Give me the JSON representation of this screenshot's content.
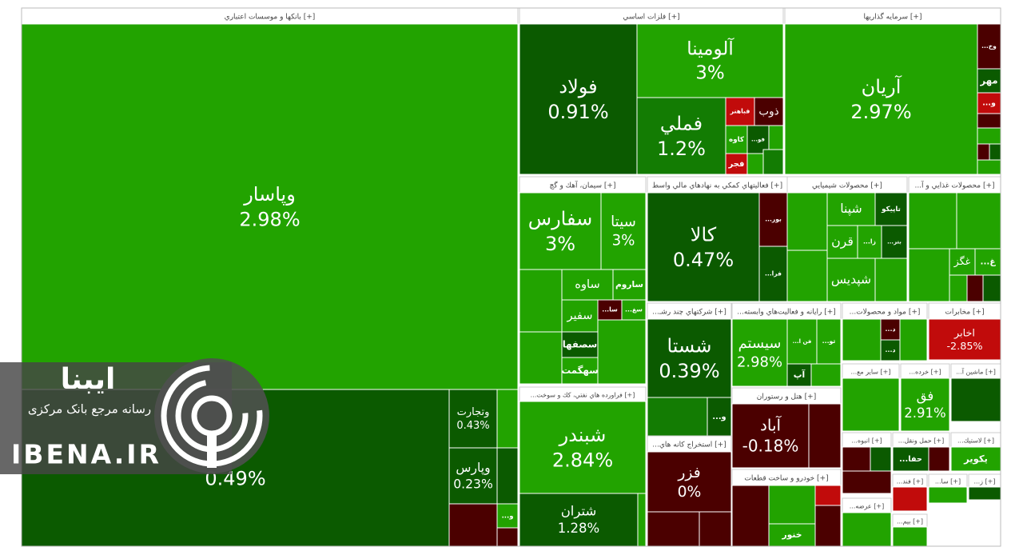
{
  "sectors": [
    {
      "title": "بانکها و موسسات اعتباري [+]",
      "tiles": [
        {
          "name": "وپاسار",
          "change": "2.98%",
          "color": "#22a300"
        },
        {
          "change": "0.49%",
          "color": "#0b5a00"
        },
        {
          "name": "وتجارت",
          "change": "0.43%",
          "color": "#0b5a00"
        },
        {
          "name": "وپارس",
          "change": "0.23%",
          "color": "#0b5a00"
        },
        {
          "color": "#4b0000"
        },
        {
          "color": "#22a300"
        },
        {
          "name": "...و",
          "color": "#22a300"
        },
        {
          "color": "#0b5a00"
        },
        {
          "color": "#4b0000"
        }
      ]
    },
    {
      "title": "فلزات اساسي [+]",
      "tiles": [
        {
          "name": "فولاد",
          "change": "0.91%",
          "color": "#0b5a00"
        },
        {
          "name": "آلومينا",
          "change": "3%",
          "color": "#22a300"
        },
        {
          "name": "فملي",
          "change": "1.2%",
          "color": "#137c03"
        },
        {
          "name": "ذوب",
          "color": "#4b0000"
        },
        {
          "name": "فباهنر",
          "color": "#c10b0b"
        },
        {
          "name": "كاوه",
          "color": "#22a300"
        },
        {
          "name": "...فو",
          "color": "#0b5a00"
        },
        {
          "name": "فجر",
          "color": "#c10b0b"
        },
        {
          "color": "#22a300"
        },
        {
          "color": "#22a300"
        },
        {
          "color": "#137c03"
        }
      ]
    },
    {
      "title": "سرمايه گذاريها [+]",
      "tiles": [
        {
          "name": "آريان",
          "change": "2.97%",
          "color": "#22a300"
        },
        {
          "name": "...وخ",
          "color": "#4b0000"
        },
        {
          "name": "مهر",
          "color": "#0b5a00"
        },
        {
          "name": "...و",
          "color": "#c10b0b"
        },
        {
          "color": "#4b0000"
        },
        {
          "color": "#22a300"
        },
        {
          "color": "#4b0000"
        },
        {
          "color": "#0b5a00"
        },
        {
          "color": "#22a300"
        }
      ]
    },
    {
      "title": "سيمان، آهك و گچ [+]",
      "tiles": [
        {
          "name": "سفارس",
          "change": "3%",
          "color": "#22a300"
        },
        {
          "name": "سيتا",
          "change": "3%",
          "color": "#22a300"
        },
        {
          "name": "ساوه",
          "color": "#22a300"
        },
        {
          "name": "ساروم",
          "color": "#22a300"
        },
        {
          "name": "سفير",
          "color": "#22a300"
        },
        {
          "name": "...سا",
          "color": "#4b0000"
        },
        {
          "name": "...سغ",
          "color": "#22a300"
        },
        {
          "name": "سصفها",
          "color": "#0b5a00"
        },
        {
          "name": "سهگمت",
          "color": "#22a300"
        },
        {
          "color": "#22a300"
        },
        {
          "color": "#22a300"
        },
        {
          "color": "#22a300"
        }
      ]
    },
    {
      "title": "فعاليتهاي كمكي به نهادهاي مالي واسط [+]",
      "tiles": [
        {
          "name": "كالا",
          "change": "0.47%",
          "color": "#0b5a00"
        },
        {
          "name": "...بور",
          "color": "#4b0000"
        },
        {
          "name": "...فرا",
          "color": "#0b5a00"
        }
      ]
    },
    {
      "title": "محصولات شيميايي [+]",
      "tiles": [
        {
          "color": "#22a300"
        },
        {
          "color": "#22a300"
        },
        {
          "name": "شپنا",
          "color": "#22a300"
        },
        {
          "name": "تاپيكو",
          "color": "#0b5a00"
        },
        {
          "name": "قرن",
          "color": "#22a300"
        },
        {
          "name": "...زا",
          "color": "#22a300"
        },
        {
          "name": "...بتر",
          "color": "#0b5a00"
        },
        {
          "name": "شپديس",
          "color": "#22a300"
        },
        {
          "color": "#22a300"
        }
      ]
    },
    {
      "title": "...محصولات غذايي و آ [+]",
      "tiles": [
        {
          "color": "#22a300"
        },
        {
          "color": "#22a300"
        },
        {
          "color": "#22a300"
        },
        {
          "name": "غگز",
          "color": "#22a300"
        },
        {
          "name": "...غ",
          "color": "#22a300"
        },
        {
          "color": "#4b0000"
        },
        {
          "color": "#22a300"
        },
        {
          "color": "#0b5a00"
        }
      ]
    },
    {
      "title": "...شركتهاي چند رشـ [+]",
      "tiles": [
        {
          "name": "شستا",
          "change": "0.39%",
          "color": "#0b5a00"
        },
        {
          "color": "#137c03"
        },
        {
          "name": "...و",
          "color": "#0b5a00"
        }
      ]
    },
    {
      "title": "...استخراج كانه هاي [+]",
      "tiles": [
        {
          "name": "فزر",
          "change": "0%",
          "color": "#4b0000"
        },
        {
          "color": "#4b0000"
        },
        {
          "color": "#4b0000"
        }
      ]
    },
    {
      "title": "...فراورده هاي نفتي، كك و سوخت [+]",
      "tiles": [
        {
          "name": "شبندر",
          "change": "2.84%",
          "color": "#22a300"
        },
        {
          "name": "شتران",
          "change": "1.28%",
          "color": "#0b5a00"
        },
        {
          "color": "#22a300"
        }
      ]
    },
    {
      "title": "...رايانه و فعاليت‌هاي وابسته [+]",
      "tiles": [
        {
          "name": "سيستم",
          "change": "2.98%",
          "color": "#22a300"
        },
        {
          "name": "...فن ا",
          "color": "#22a300"
        },
        {
          "name": "...تو",
          "color": "#22a300"
        },
        {
          "name": "آپ",
          "color": "#0b5a00"
        },
        {
          "color": "#22a300"
        }
      ]
    },
    {
      "title": "هتل و رستوران [+]",
      "tiles": [
        {
          "name": "آباد",
          "change": "-0.18%",
          "color": "#4b0000"
        },
        {
          "color": "#4b0000"
        }
      ]
    },
    {
      "title": "خودرو و ساخت قطعات [+]",
      "tiles": [
        {
          "color": "#4b0000"
        },
        {
          "color": "#22a300"
        },
        {
          "name": "خنور",
          "color": "#22a300"
        },
        {
          "color": "#c10b0b"
        },
        {
          "color": "#4b0000"
        }
      ]
    },
    {
      "title": "...مواد و محصولات [+]",
      "tiles": [
        {
          "color": "#22a300"
        },
        {
          "name": "...د",
          "color": "#4b0000"
        },
        {
          "name": "...د",
          "color": "#0b5a00"
        },
        {
          "color": "#22a300"
        }
      ]
    },
    {
      "title": "مخابرات [+]",
      "tiles": [
        {
          "name": "اخابر",
          "change": "-2.85%",
          "color": "#c10b0b"
        }
      ]
    },
    {
      "title": "...ساير مع [+]",
      "tiles": [
        {
          "color": "#22a300"
        }
      ]
    },
    {
      "title": "...خرده [+]",
      "tiles": [
        {
          "name": "فق",
          "change": "2.91%",
          "color": "#22a300"
        }
      ]
    },
    {
      "title": "...ماشين آ [+]",
      "tiles": [
        {
          "color": "#0b5a00"
        }
      ]
    },
    {
      "title": "...انبوه [+]",
      "tiles": [
        {
          "color": "#4b0000"
        },
        {
          "color": "#0b5a00"
        },
        {
          "color": "#4b0000"
        }
      ]
    },
    {
      "title": "...حمل ونقل [+]",
      "tiles": [
        {
          "name": "...حفا",
          "color": "#0b5a00"
        },
        {
          "color": "#4b0000"
        }
      ]
    },
    {
      "title": "...لاستيك [+]",
      "tiles": [
        {
          "name": "يكوير",
          "color": "#22a300"
        }
      ]
    },
    {
      "title": "...عرضه [+]",
      "tiles": [
        {
          "color": "#22a300"
        }
      ]
    },
    {
      "title": "...فند [+]",
      "tiles": [
        {
          "color": "#c10b0b"
        }
      ]
    },
    {
      "title": "...سا [+]",
      "tiles": [
        {
          "color": "#22a300"
        }
      ]
    },
    {
      "title": "...ز [+]",
      "tiles": [
        {
          "color": "#0b5a00"
        }
      ]
    },
    {
      "title": "...بيم [+]",
      "tiles": [
        {
          "color": "#22a300"
        }
      ]
    }
  ],
  "watermark": {
    "logo_text": "ایبنا",
    "tagline": "رسانه مرجع بانک مرکزی",
    "site": "IBENA.IR"
  }
}
